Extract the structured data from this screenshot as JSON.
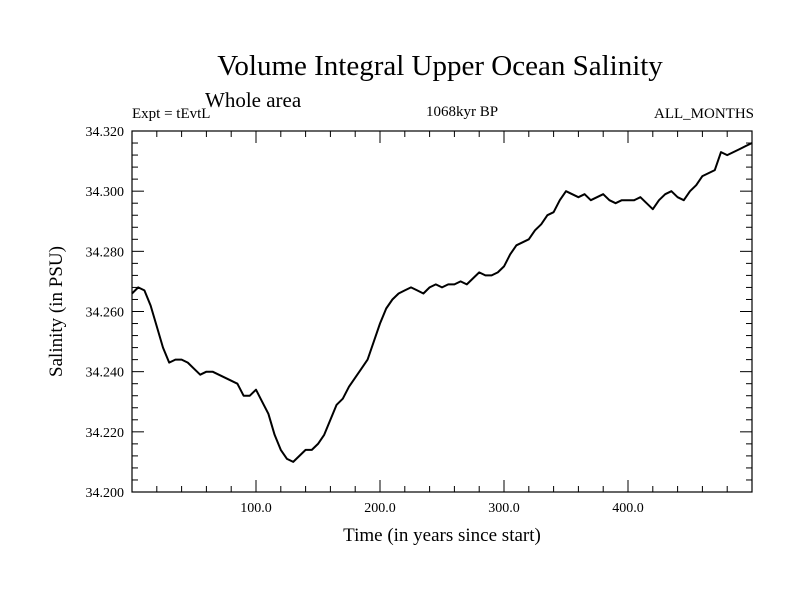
{
  "chart_data": {
    "type": "line",
    "title": "Volume Integral Upper Ocean Salinity",
    "subtitle": "Whole area",
    "experiment_label": "Expt = tEvtL",
    "period_label": "1068kyr BP",
    "months_label": "ALL_MONTHS",
    "xlabel": "Time (in years since start)",
    "ylabel": "Salinity (in PSU)",
    "xlim": [
      0,
      500
    ],
    "ylim": [
      34.2,
      34.32
    ],
    "x_ticks": [
      100,
      200,
      300,
      400
    ],
    "x_tick_labels": [
      "100.0",
      "200.0",
      "300.0",
      "400.0"
    ],
    "y_ticks": [
      34.2,
      34.22,
      34.24,
      34.26,
      34.28,
      34.3,
      34.32
    ],
    "y_tick_labels": [
      "34.200",
      "34.220",
      "34.240",
      "34.260",
      "34.280",
      "34.300",
      "34.320"
    ],
    "series": [
      {
        "name": "salinity",
        "x": [
          0,
          5,
          10,
          15,
          20,
          25,
          30,
          35,
          40,
          45,
          50,
          55,
          60,
          65,
          70,
          75,
          80,
          85,
          90,
          95,
          100,
          105,
          110,
          115,
          120,
          125,
          130,
          135,
          140,
          145,
          150,
          155,
          160,
          165,
          170,
          175,
          180,
          185,
          190,
          195,
          200,
          205,
          210,
          215,
          220,
          225,
          230,
          235,
          240,
          245,
          250,
          255,
          260,
          265,
          270,
          275,
          280,
          285,
          290,
          295,
          300,
          305,
          310,
          315,
          320,
          325,
          330,
          335,
          340,
          345,
          350,
          355,
          360,
          365,
          370,
          375,
          380,
          385,
          390,
          395,
          400,
          405,
          410,
          415,
          420,
          425,
          430,
          435,
          440,
          445,
          450,
          455,
          460,
          465,
          470,
          475,
          480,
          485,
          490,
          495,
          500
        ],
        "y": [
          34.266,
          34.268,
          34.267,
          34.262,
          34.255,
          34.248,
          34.243,
          34.244,
          34.244,
          34.243,
          34.241,
          34.239,
          34.24,
          34.24,
          34.239,
          34.238,
          34.237,
          34.236,
          34.232,
          34.232,
          34.234,
          34.23,
          34.226,
          34.219,
          34.214,
          34.211,
          34.21,
          34.212,
          34.214,
          34.214,
          34.216,
          34.219,
          34.224,
          34.229,
          34.231,
          34.235,
          34.238,
          34.241,
          34.244,
          34.25,
          34.256,
          34.261,
          34.264,
          34.266,
          34.267,
          34.268,
          34.267,
          34.266,
          34.268,
          34.269,
          34.268,
          34.269,
          34.269,
          34.27,
          34.269,
          34.271,
          34.273,
          34.272,
          34.272,
          34.273,
          34.275,
          34.279,
          34.282,
          34.283,
          34.284,
          34.287,
          34.289,
          34.292,
          34.293,
          34.297,
          34.3,
          34.299,
          34.298,
          34.299,
          34.297,
          34.298,
          34.299,
          34.297,
          34.296,
          34.297,
          34.297,
          34.297,
          34.298,
          34.296,
          34.294,
          34.297,
          34.299,
          34.3,
          34.298,
          34.297,
          34.3,
          34.302,
          34.305,
          34.306,
          34.307,
          34.313,
          34.312,
          34.313,
          34.314,
          34.315,
          34.316
        ]
      }
    ]
  }
}
